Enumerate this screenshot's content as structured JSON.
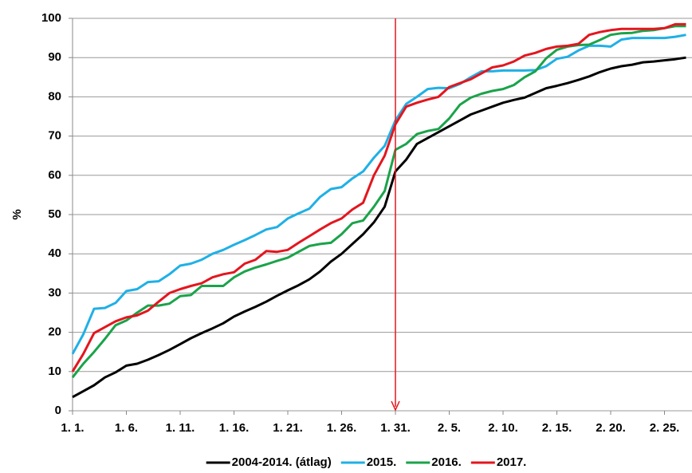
{
  "chart_data": {
    "type": "line",
    "y_label": "%",
    "categories": [
      "1. 1.",
      null,
      null,
      null,
      null,
      "1. 6.",
      null,
      null,
      null,
      null,
      "1. 11.",
      null,
      null,
      null,
      null,
      "1. 16.",
      null,
      null,
      null,
      null,
      "1. 21.",
      null,
      null,
      null,
      null,
      "1. 26.",
      null,
      null,
      null,
      null,
      "1. 31.",
      null,
      null,
      null,
      null,
      "2. 5.",
      null,
      null,
      null,
      null,
      "2. 10.",
      null,
      null,
      null,
      null,
      "2. 15.",
      null,
      null,
      null,
      null,
      "2. 20.",
      null,
      null,
      null,
      null,
      "2. 25.",
      null,
      null
    ],
    "series": [
      {
        "name": "2004-2014. (átlag)",
        "color": "#000000",
        "values": [
          3.5,
          5,
          6.5,
          8.5,
          9.8,
          11.5,
          12,
          13,
          14.2,
          15.5,
          17,
          18.5,
          19.8,
          21,
          22.3,
          24,
          25.3,
          26.5,
          27.8,
          29.3,
          30.7,
          32,
          33.5,
          35.5,
          38,
          40,
          42.5,
          45,
          48,
          52,
          61,
          64,
          68,
          69.5,
          71,
          72.5,
          74,
          75.5,
          76.5,
          77.5,
          78.5,
          79.2,
          79.8,
          81,
          82.2,
          82.8,
          83.5,
          84.3,
          85.2,
          86.3,
          87.2,
          87.8,
          88.2,
          88.8,
          89,
          89.3,
          89.6,
          90
        ]
      },
      {
        "name": "2015.",
        "color": "#1fb0e6",
        "values": [
          14.5,
          19.5,
          26,
          26.2,
          27.5,
          30.5,
          31,
          32.8,
          33,
          34.8,
          37,
          37.5,
          38.5,
          40,
          41,
          42.3,
          43.5,
          44.8,
          46.2,
          46.8,
          49,
          50.3,
          51.5,
          54.5,
          56.5,
          57,
          59.2,
          61,
          64.5,
          67.5,
          74,
          78.2,
          80,
          82,
          82.3,
          82.2,
          83.3,
          85,
          86.5,
          86.5,
          86.7,
          86.7,
          86.7,
          86.8,
          87.8,
          89.7,
          90.2,
          91.8,
          93,
          93,
          92.8,
          94.6,
          95,
          95,
          95,
          95,
          95.3,
          95.8
        ]
      },
      {
        "name": "2016.",
        "color": "#1aa34a",
        "values": [
          8.5,
          12,
          15,
          18.3,
          21.8,
          23,
          25,
          26.8,
          26.8,
          27.3,
          29.2,
          29.5,
          31.8,
          31.8,
          31.8,
          34,
          35.5,
          36.5,
          37.3,
          38.2,
          39,
          40.5,
          42,
          42.5,
          42.8,
          45,
          47.8,
          48.5,
          52,
          56,
          66.5,
          68,
          70.5,
          71.3,
          71.8,
          74.5,
          78,
          79.8,
          80.8,
          81.5,
          82,
          83,
          85,
          86.5,
          89.8,
          92,
          92.8,
          93.2,
          93.3,
          94.5,
          95.8,
          96.2,
          96.3,
          96.8,
          97,
          97.5,
          98,
          98
        ]
      },
      {
        "name": "2017.",
        "color": "#e3161e",
        "values": [
          10,
          14.5,
          19.8,
          21.3,
          22.8,
          23.8,
          24.3,
          25.5,
          27.8,
          30,
          31,
          31.8,
          32.5,
          34,
          34.8,
          35.3,
          37.5,
          38.5,
          40.7,
          40.5,
          41,
          42.8,
          44.5,
          46.2,
          47.8,
          49,
          51.3,
          53,
          60,
          65,
          73,
          77.5,
          78.5,
          79.3,
          80,
          82.5,
          83.5,
          84.5,
          86,
          87.5,
          88,
          89,
          90.5,
          91.2,
          92.2,
          92.8,
          93,
          93.5,
          95.8,
          96.5,
          97,
          97.3,
          97.3,
          97.3,
          97.3,
          97.5,
          98.5,
          98.5
        ]
      }
    ],
    "ylim": [
      0,
      100
    ],
    "yticks": [
      0,
      10,
      20,
      30,
      40,
      50,
      60,
      70,
      80,
      90,
      100
    ],
    "grid": true,
    "legend": "bottom"
  }
}
